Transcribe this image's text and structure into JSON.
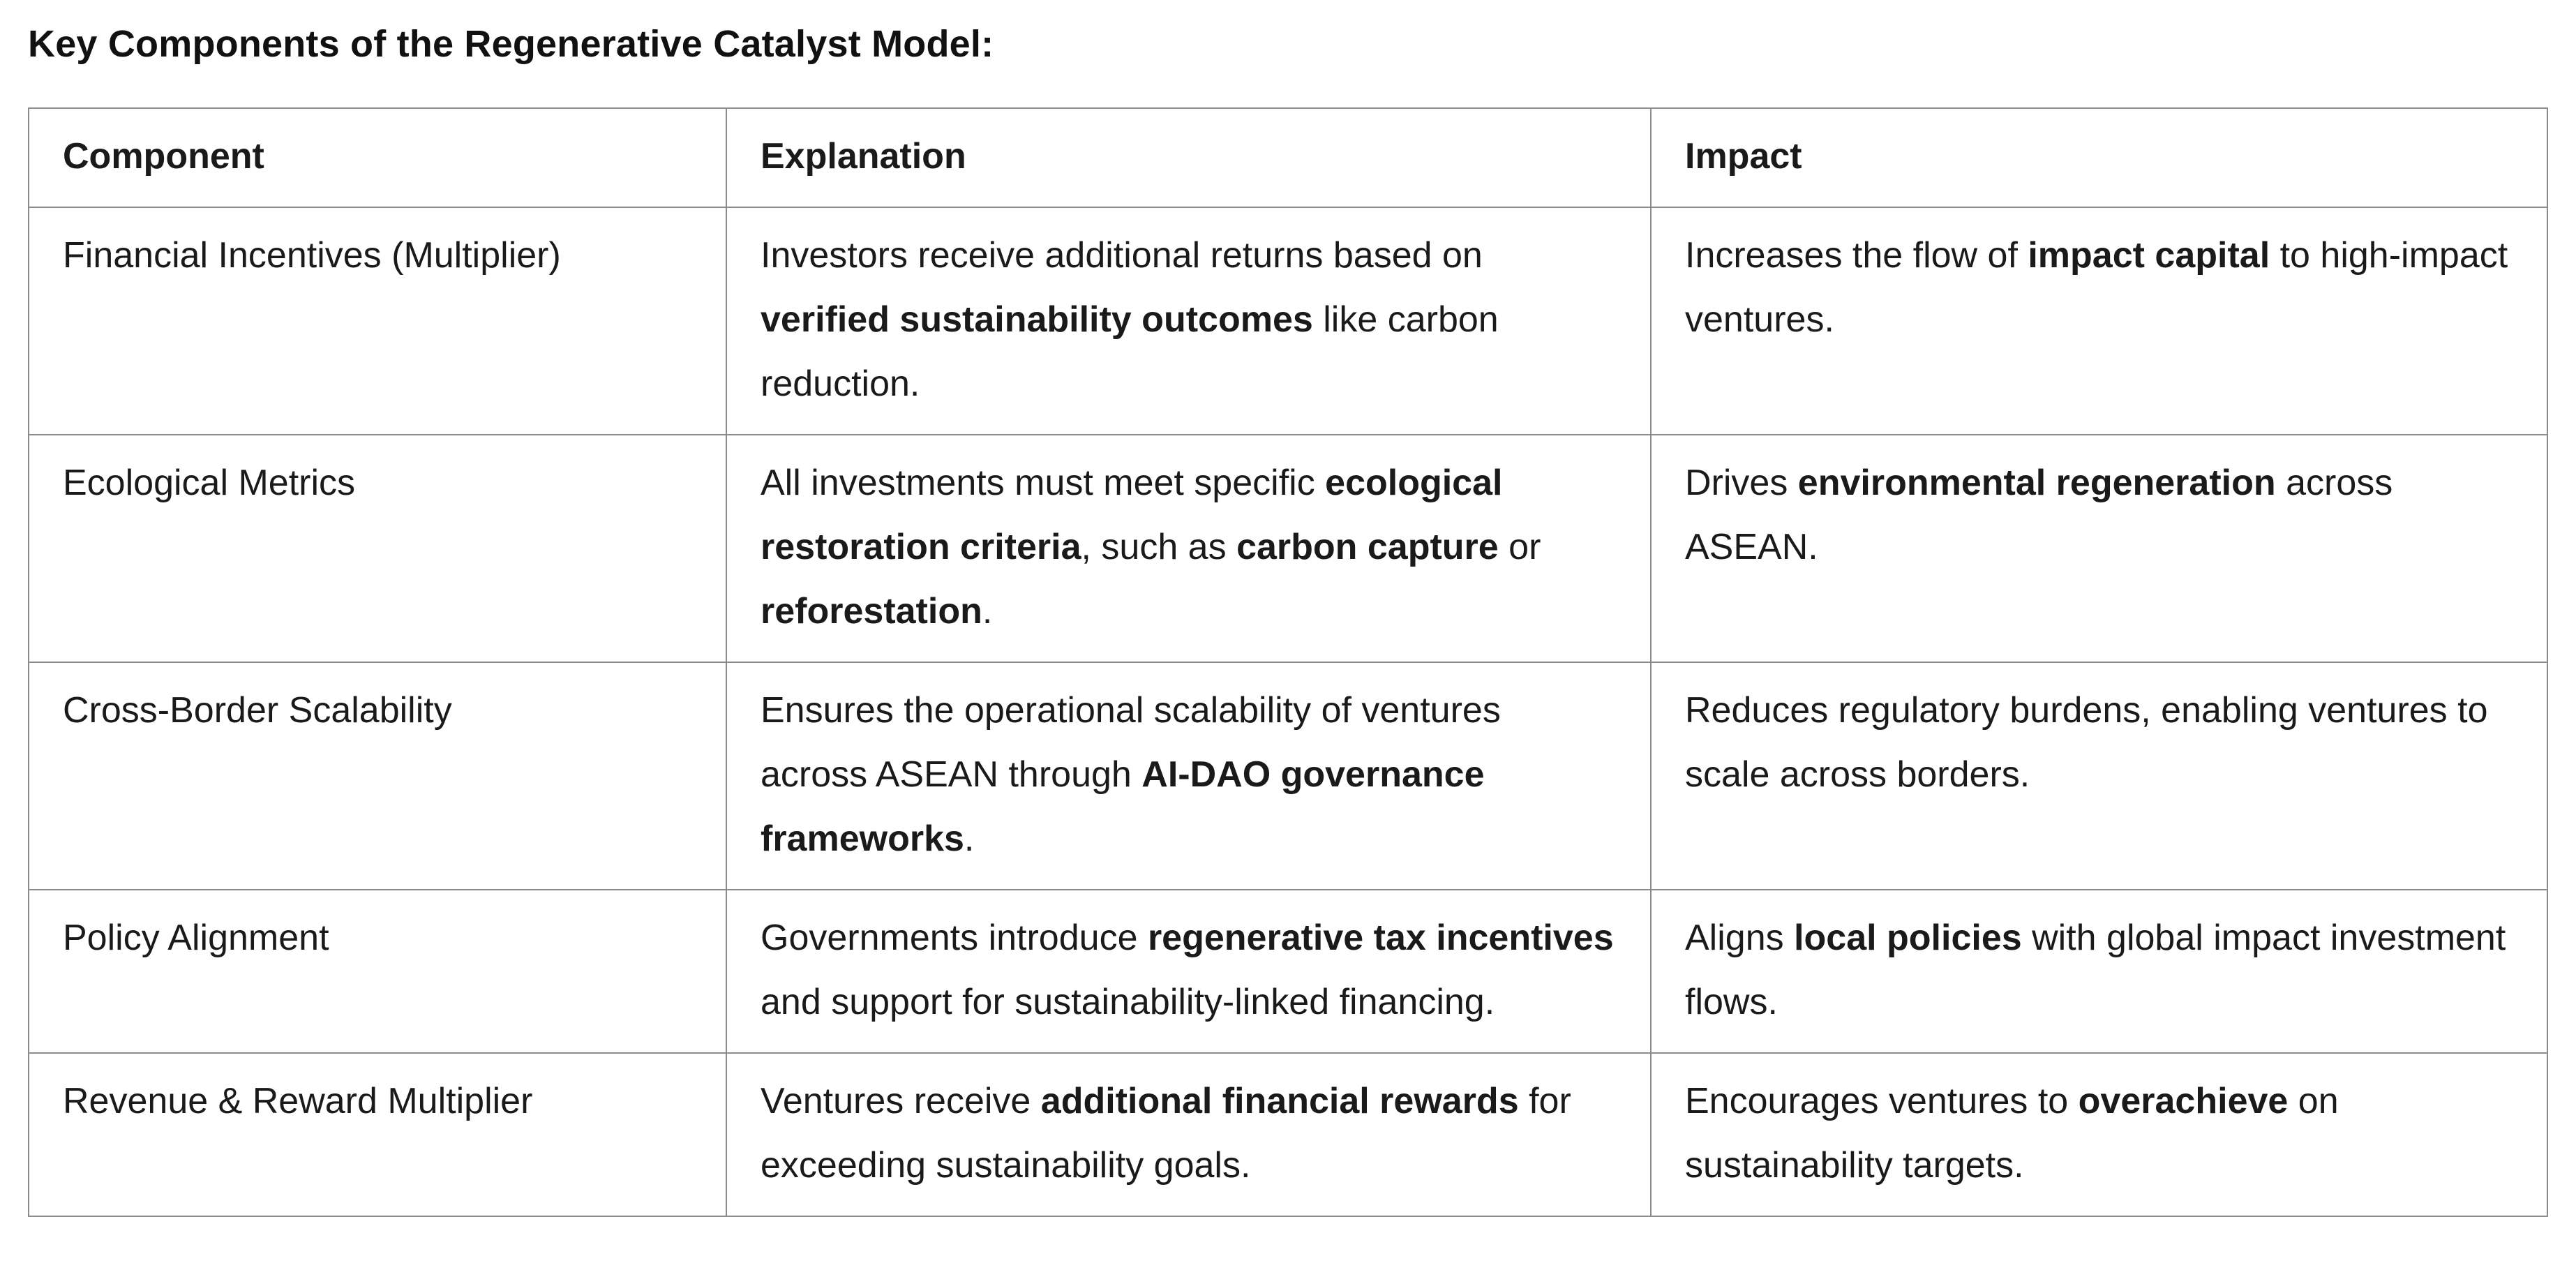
{
  "page": {
    "title": "Key Components of the Regenerative Catalyst Model:"
  },
  "table": {
    "headers": [
      "Component",
      "Explanation",
      "Impact"
    ],
    "rows": [
      {
        "component": "Financial Incentives (Multiplier)",
        "explanation": [
          {
            "t": "Investors receive additional returns based on "
          },
          {
            "t": "verified sustainability outcomes",
            "b": true
          },
          {
            "t": " like carbon reduction."
          }
        ],
        "impact": [
          {
            "t": "Increases the flow of "
          },
          {
            "t": "impact capital",
            "b": true
          },
          {
            "t": " to high-impact ventures."
          }
        ]
      },
      {
        "component": "Ecological Metrics",
        "explanation": [
          {
            "t": "All investments must meet specific "
          },
          {
            "t": "ecological restoration criteria",
            "b": true
          },
          {
            "t": ", such as "
          },
          {
            "t": "carbon capture",
            "b": true
          },
          {
            "t": " or "
          },
          {
            "t": "reforestation",
            "b": true
          },
          {
            "t": "."
          }
        ],
        "impact": [
          {
            "t": "Drives "
          },
          {
            "t": "environmental regeneration",
            "b": true
          },
          {
            "t": " across ASEAN."
          }
        ]
      },
      {
        "component": "Cross-Border Scalability",
        "explanation": [
          {
            "t": "Ensures the operational scalability of ventures across ASEAN through "
          },
          {
            "t": "AI-DAO governance frameworks",
            "b": true
          },
          {
            "t": "."
          }
        ],
        "impact": [
          {
            "t": "Reduces regulatory burdens, enabling ventures to scale across borders."
          }
        ]
      },
      {
        "component": "Policy Alignment",
        "explanation": [
          {
            "t": "Governments introduce "
          },
          {
            "t": "regenerative tax incentives",
            "b": true
          },
          {
            "t": " and support for sustainability-linked financing."
          }
        ],
        "impact": [
          {
            "t": "Aligns "
          },
          {
            "t": "local policies",
            "b": true
          },
          {
            "t": " with global impact investment flows."
          }
        ]
      },
      {
        "component": "Revenue & Reward Multiplier",
        "explanation": [
          {
            "t": "Ventures receive "
          },
          {
            "t": "additional financial rewards",
            "b": true
          },
          {
            "t": " for exceeding sustainability goals."
          }
        ],
        "impact": [
          {
            "t": "Encourages ventures to "
          },
          {
            "t": "overachieve",
            "b": true
          },
          {
            "t": " on sustainability targets."
          }
        ]
      }
    ]
  }
}
